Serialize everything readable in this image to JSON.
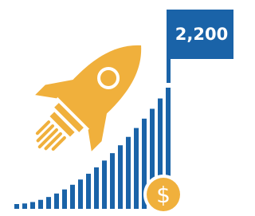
{
  "flag_label": "2,200",
  "coin_symbol": "$"
}
